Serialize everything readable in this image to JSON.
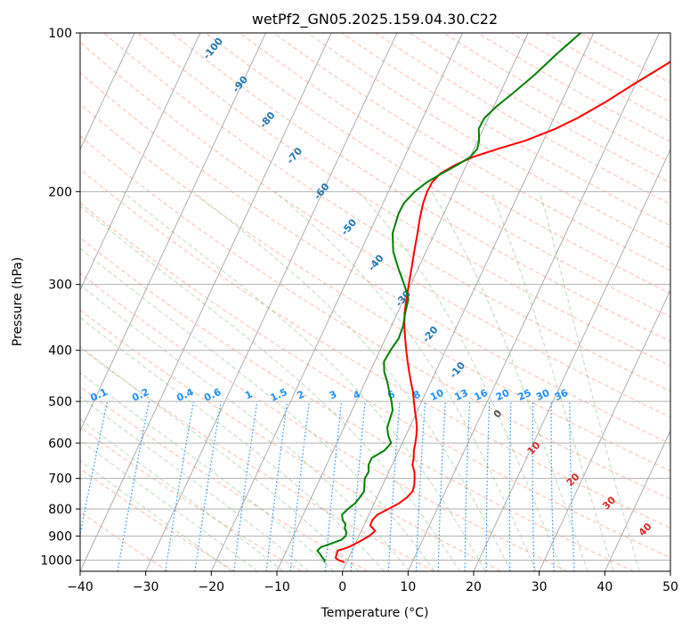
{
  "chart_data": {
    "type": "line",
    "title": "wetPf2_GN05.2025.159.04.30.C22",
    "xlabel": "Temperature (°C)",
    "ylabel": "Pressure (hPa)",
    "xlim": [
      -40,
      50
    ],
    "ylim": [
      1050,
      100
    ],
    "y_scale": "log",
    "x_ticks": [
      -40,
      -30,
      -20,
      -10,
      0,
      10,
      20,
      30,
      40,
      50
    ],
    "x_tick_labels": [
      "−40",
      "−30",
      "−20",
      "−10",
      "0",
      "10",
      "20",
      "30",
      "40",
      "50"
    ],
    "y_ticks": [
      1000,
      900,
      800,
      700,
      600,
      500,
      400,
      300,
      200,
      100
    ],
    "y_tick_labels": [
      "1000",
      "900",
      "800",
      "700",
      "600",
      "500",
      "400",
      "300",
      "200",
      "100"
    ],
    "grid": true,
    "series": [
      {
        "role": "temperature",
        "color": "#ff0000",
        "points": [
          [
            1010,
            -0.3
          ],
          [
            1000,
            -1.4
          ],
          [
            990,
            -2.0
          ],
          [
            975,
            -2.1
          ],
          [
            960,
            -2.2
          ],
          [
            945,
            -0.8
          ],
          [
            920,
            0.6
          ],
          [
            900,
            1.6
          ],
          [
            880,
            2.1
          ],
          [
            860,
            1.0
          ],
          [
            840,
            0.9
          ],
          [
            820,
            1.3
          ],
          [
            800,
            2.6
          ],
          [
            780,
            3.8
          ],
          [
            760,
            4.6
          ],
          [
            740,
            5.0
          ],
          [
            720,
            4.8
          ],
          [
            700,
            4.4
          ],
          [
            680,
            3.9
          ],
          [
            660,
            3.1
          ],
          [
            640,
            2.8
          ],
          [
            620,
            2.3
          ],
          [
            600,
            2.0
          ],
          [
            580,
            1.6
          ],
          [
            560,
            1.1
          ],
          [
            540,
            0.4
          ],
          [
            520,
            -0.4
          ],
          [
            500,
            -1.2
          ],
          [
            480,
            -2.0
          ],
          [
            460,
            -3.0
          ],
          [
            440,
            -4.0
          ],
          [
            420,
            -5.0
          ],
          [
            400,
            -6.0
          ],
          [
            380,
            -7.0
          ],
          [
            360,
            -8.0
          ],
          [
            340,
            -8.9
          ],
          [
            320,
            -9.6
          ],
          [
            300,
            -10.3
          ],
          [
            280,
            -11.0
          ],
          [
            260,
            -11.8
          ],
          [
            240,
            -12.6
          ],
          [
            225,
            -13.3
          ],
          [
            210,
            -13.9
          ],
          [
            200,
            -14.1
          ],
          [
            192,
            -14.0
          ],
          [
            185,
            -13.4
          ],
          [
            178,
            -11.7
          ],
          [
            172,
            -9.6
          ],
          [
            166,
            -6.4
          ],
          [
            160,
            -2.7
          ],
          [
            152,
            1.0
          ],
          [
            145,
            3.6
          ],
          [
            135,
            6.8
          ],
          [
            125,
            9.8
          ],
          [
            115,
            13.2
          ],
          [
            108,
            15.6
          ],
          [
            100,
            18.0
          ]
        ]
      },
      {
        "role": "dewpoint",
        "color": "#008000",
        "points": [
          [
            1010,
            -3.4
          ],
          [
            1000,
            -3.5
          ],
          [
            990,
            -4.0
          ],
          [
            975,
            -4.6
          ],
          [
            960,
            -5.3
          ],
          [
            945,
            -5.0
          ],
          [
            930,
            -3.7
          ],
          [
            915,
            -2.4
          ],
          [
            900,
            -2.0
          ],
          [
            885,
            -2.2
          ],
          [
            870,
            -2.7
          ],
          [
            855,
            -2.9
          ],
          [
            840,
            -3.6
          ],
          [
            820,
            -4.1
          ],
          [
            800,
            -3.6
          ],
          [
            780,
            -2.9
          ],
          [
            760,
            -2.6
          ],
          [
            740,
            -2.4
          ],
          [
            720,
            -2.8
          ],
          [
            700,
            -3.2
          ],
          [
            680,
            -3.1
          ],
          [
            660,
            -3.6
          ],
          [
            640,
            -3.6
          ],
          [
            620,
            -2.2
          ],
          [
            600,
            -1.7
          ],
          [
            580,
            -2.7
          ],
          [
            560,
            -3.4
          ],
          [
            540,
            -3.6
          ],
          [
            520,
            -3.8
          ],
          [
            500,
            -4.6
          ],
          [
            480,
            -5.6
          ],
          [
            460,
            -6.6
          ],
          [
            440,
            -7.8
          ],
          [
            420,
            -8.6
          ],
          [
            400,
            -8.4
          ],
          [
            380,
            -8.0
          ],
          [
            360,
            -8.2
          ],
          [
            340,
            -8.8
          ],
          [
            320,
            -9.3
          ],
          [
            310,
            -10.1
          ],
          [
            300,
            -11.0
          ],
          [
            280,
            -13.0
          ],
          [
            260,
            -15.0
          ],
          [
            240,
            -16.4
          ],
          [
            220,
            -16.9
          ],
          [
            210,
            -16.8
          ],
          [
            200,
            -16.0
          ],
          [
            192,
            -14.8
          ],
          [
            185,
            -13.2
          ],
          [
            178,
            -11.4
          ],
          [
            172,
            -10.0
          ],
          [
            166,
            -9.5
          ],
          [
            160,
            -9.8
          ],
          [
            152,
            -10.7
          ],
          [
            145,
            -10.6
          ],
          [
            138,
            -9.6
          ],
          [
            130,
            -8.0
          ],
          [
            120,
            -6.0
          ],
          [
            110,
            -4.2
          ],
          [
            100,
            -2.0
          ]
        ]
      }
    ],
    "background_lines": {
      "dry_adiabat_labels": [
        "-100",
        "-90",
        "-80",
        "-70",
        "-60",
        "-50",
        "-40",
        "-30",
        "-20",
        "-10"
      ],
      "moist_adiabat_labels": [
        "10",
        "20",
        "30",
        "40"
      ],
      "mixing_ratio_labels": [
        "0.1",
        "0.2",
        "0.4",
        "0.6",
        "1",
        "1.5",
        "2",
        "3",
        "4",
        "6",
        "8",
        "10",
        "13",
        "16",
        "20",
        "25",
        "30",
        "36"
      ],
      "zero_label": "0"
    }
  }
}
